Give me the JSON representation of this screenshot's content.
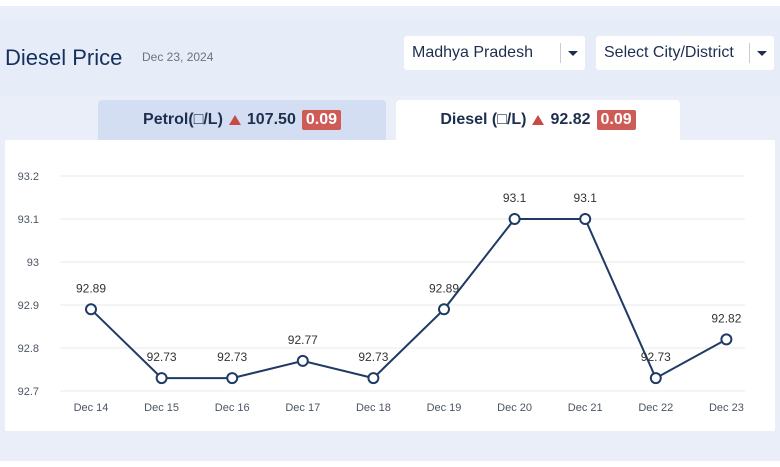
{
  "header": {
    "title": "Diesel Price",
    "date": "Dec 23, 2024",
    "state_select": "Madhya Pradesh",
    "city_select": "Select City/District"
  },
  "tabs": {
    "petrol": {
      "label": "Petrol(□/L)",
      "price": "107.50",
      "change": "0.09"
    },
    "diesel": {
      "label": "Diesel (□/L)",
      "price": "92.82",
      "change": "0.09"
    }
  },
  "colors": {
    "line": "#1f3a64",
    "badge": "#cf5b57",
    "up_arrow": "#c94a45",
    "grid": "#e6e9ee"
  },
  "chart_data": {
    "type": "line",
    "categories": [
      "Dec 14",
      "Dec 15",
      "Dec 16",
      "Dec 17",
      "Dec 18",
      "Dec 19",
      "Dec 20",
      "Dec 21",
      "Dec 22",
      "Dec 23"
    ],
    "values": [
      92.89,
      92.73,
      92.73,
      92.77,
      92.73,
      92.89,
      93.1,
      93.1,
      92.73,
      92.82
    ],
    "data_labels": [
      "92.89",
      "92.73",
      "92.73",
      "92.77",
      "92.73",
      "92.89",
      "93.1",
      "93.1",
      "92.73",
      "92.82"
    ],
    "y_ticks": [
      "92.7",
      "92.8",
      "92.9",
      "93",
      "93.1",
      "93.2"
    ],
    "ylim": [
      92.7,
      93.2
    ],
    "grid": true,
    "markers": "hollow-circle"
  }
}
